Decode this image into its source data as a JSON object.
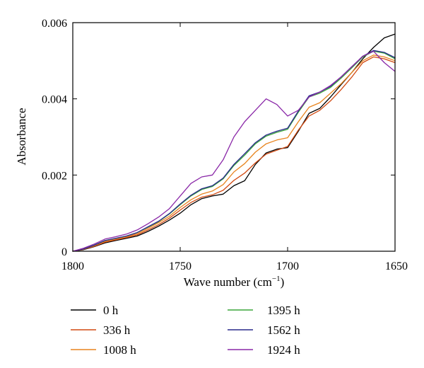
{
  "chart_data": {
    "type": "line",
    "title": "",
    "xlabel": "Wave number (cm",
    "xlabel_sup": "−1",
    "xlabel_close": ")",
    "ylabel": "Absorbance",
    "xlim": [
      1800,
      1650
    ],
    "ylim": [
      0,
      0.006
    ],
    "x_reversed": true,
    "grid": false,
    "legend_position": "bottom",
    "x_ticks": [
      {
        "value": 1800,
        "label": "1800"
      },
      {
        "value": 1750,
        "label": "1750"
      },
      {
        "value": 1700,
        "label": "1700"
      },
      {
        "value": 1650,
        "label": "1650"
      }
    ],
    "y_ticks": [
      {
        "value": 0,
        "label": "0"
      },
      {
        "value": 0.002,
        "label": "0.002"
      },
      {
        "value": 0.004,
        "label": "0.004"
      },
      {
        "value": 0.006,
        "label": "0.006"
      }
    ],
    "x": [
      1800,
      1795,
      1790,
      1785,
      1780,
      1775,
      1770,
      1765,
      1760,
      1755,
      1750,
      1745,
      1740,
      1735,
      1730,
      1725,
      1720,
      1715,
      1710,
      1705,
      1700,
      1695,
      1690,
      1685,
      1680,
      1675,
      1670,
      1665,
      1660,
      1655,
      1650
    ],
    "series": [
      {
        "name": "0 h",
        "color": "#000000",
        "values": [
          0.0,
          4e-05,
          0.00012,
          0.00022,
          0.00028,
          0.00034,
          0.0004,
          0.00052,
          0.00066,
          0.00082,
          0.001,
          0.00122,
          0.00138,
          0.00145,
          0.0015,
          0.00172,
          0.00185,
          0.00228,
          0.00258,
          0.00268,
          0.00272,
          0.00315,
          0.00362,
          0.00375,
          0.00405,
          0.00438,
          0.0047,
          0.00505,
          0.00535,
          0.0056,
          0.0057
        ]
      },
      {
        "name": "336 h",
        "color": "#d24a12",
        "values": [
          0.0,
          5e-05,
          0.00013,
          0.00024,
          0.0003,
          0.00036,
          0.00043,
          0.00056,
          0.0007,
          0.00087,
          0.00108,
          0.00128,
          0.00142,
          0.00148,
          0.0016,
          0.00186,
          0.00205,
          0.00232,
          0.00255,
          0.00265,
          0.00275,
          0.00318,
          0.00355,
          0.0037,
          0.00395,
          0.00425,
          0.00458,
          0.00495,
          0.0051,
          0.00505,
          0.00495
        ]
      },
      {
        "name": "1008 h",
        "color": "#e8841e",
        "values": [
          0.0,
          6e-05,
          0.00015,
          0.00026,
          0.00032,
          0.00038,
          0.00046,
          0.0006,
          0.00075,
          0.00092,
          0.00115,
          0.00135,
          0.0015,
          0.00158,
          0.00175,
          0.00208,
          0.0023,
          0.0026,
          0.00282,
          0.00292,
          0.00298,
          0.0034,
          0.00378,
          0.0039,
          0.00415,
          0.0044,
          0.0047,
          0.005,
          0.00515,
          0.0051,
          0.005
        ]
      },
      {
        "name": "1395 h",
        "color": "#3aa63a",
        "values": [
          0.0,
          6e-05,
          0.00016,
          0.00028,
          0.00034,
          0.0004,
          0.00049,
          0.00063,
          0.00078,
          0.00098,
          0.00122,
          0.00145,
          0.00162,
          0.0017,
          0.0019,
          0.00225,
          0.00252,
          0.00282,
          0.00302,
          0.00312,
          0.0032,
          0.00365,
          0.00405,
          0.00415,
          0.0043,
          0.00455,
          0.00482,
          0.0051,
          0.00525,
          0.0052,
          0.00505
        ]
      },
      {
        "name": "1562 h",
        "color": "#2a2a8c",
        "values": [
          0.0,
          6e-05,
          0.00016,
          0.00028,
          0.00034,
          0.0004,
          0.00049,
          0.00064,
          0.00079,
          0.00099,
          0.00124,
          0.00147,
          0.00164,
          0.00172,
          0.00192,
          0.00228,
          0.00256,
          0.00285,
          0.00305,
          0.00315,
          0.00323,
          0.00368,
          0.00408,
          0.00418,
          0.00433,
          0.00458,
          0.00485,
          0.00512,
          0.00527,
          0.00522,
          0.00508
        ]
      },
      {
        "name": "1924 h",
        "color": "#8a28a8",
        "values": [
          0.0,
          8e-05,
          0.00019,
          0.00032,
          0.00038,
          0.00045,
          0.00056,
          0.00072,
          0.0009,
          0.00112,
          0.00145,
          0.00178,
          0.00195,
          0.002,
          0.0024,
          0.003,
          0.0034,
          0.0037,
          0.004,
          0.00385,
          0.00355,
          0.0037,
          0.00405,
          0.00418,
          0.00435,
          0.00458,
          0.00485,
          0.00512,
          0.00525,
          0.00495,
          0.00472
        ]
      }
    ]
  }
}
